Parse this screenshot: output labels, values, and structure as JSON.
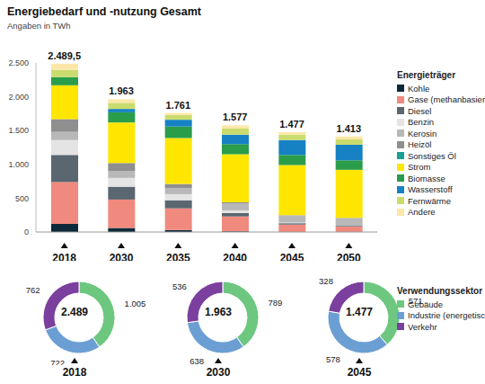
{
  "chart_data": [
    {
      "type": "bar",
      "title": "Energiebedarf und -nutzung Gesamt",
      "subtitle": "Angaben in TWh",
      "stacked": true,
      "grid": false,
      "legend_title": "Energieträger",
      "categories": [
        "2018",
        "2030",
        "2035",
        "2040",
        "2045",
        "2050"
      ],
      "series": [
        {
          "name": "Kohle",
          "color": "#0d2a3a",
          "values": [
            120,
            60,
            30,
            10,
            0,
            0
          ]
        },
        {
          "name": "Gase (methanbasiert)",
          "color": "#f08a7e",
          "values": [
            620,
            420,
            320,
            220,
            110,
            80
          ]
        },
        {
          "name": "Diesel",
          "color": "#5a6670",
          "values": [
            400,
            190,
            120,
            50,
            20,
            10
          ]
        },
        {
          "name": "Benzin",
          "color": "#e4e4e4",
          "values": [
            220,
            130,
            90,
            40,
            10,
            0
          ]
        },
        {
          "name": "Kerosin",
          "color": "#b8b8b8",
          "values": [
            120,
            100,
            90,
            100,
            110,
            120
          ]
        },
        {
          "name": "Heizöl",
          "color": "#8f8f8f",
          "values": [
            190,
            120,
            60,
            20,
            0,
            0
          ]
        },
        {
          "name": "Sonstiges Öl",
          "color": "#1a9e96",
          "values": [
            0,
            0,
            0,
            0,
            0,
            0
          ]
        },
        {
          "name": "Strom",
          "color": "#ffe600",
          "values": [
            500,
            600,
            680,
            710,
            740,
            710
          ]
        },
        {
          "name": "Biomasse",
          "color": "#2a9d4b",
          "values": [
            120,
            150,
            170,
            150,
            150,
            140
          ]
        },
        {
          "name": "Wasserstoff",
          "color": "#1682c4",
          "values": [
            0,
            50,
            100,
            140,
            220,
            230
          ]
        },
        {
          "name": "Fernwärme",
          "color": "#cadc6e",
          "values": [
            110,
            90,
            70,
            90,
            80,
            80
          ]
        },
        {
          "name": "Andere",
          "color": "#fde7a8",
          "values": [
            89.5,
            53,
            31,
            47,
            37,
            43
          ]
        }
      ],
      "totals": {
        "values": [
          2489.5,
          1963,
          1761,
          1577,
          1477,
          1413
        ],
        "value_labels": [
          "2.489,5",
          "1.963",
          "1.761",
          "1.577",
          "1.477",
          "1.413"
        ]
      },
      "ylim": [
        0,
        2500
      ],
      "yticks": [
        0,
        500,
        {
          "value": 1000,
          "label": "1.000"
        },
        {
          "value": 1500,
          "label": "1.500"
        },
        {
          "value": 2000,
          "label": "2.000"
        },
        {
          "value": 2500,
          "label": "2.500"
        }
      ]
    },
    {
      "type": "pie",
      "title": "2018",
      "legend_title": "Verwendungssektor",
      "categories": [
        "Gebäude",
        "Industrie (energetisch)",
        "Verkehr"
      ],
      "values": [
        1005,
        722,
        762
      ],
      "value_labels": [
        "1.005",
        "722",
        "762"
      ],
      "colors": [
        "#6dc77f",
        "#6b9fd4",
        "#7b3f9e"
      ],
      "center": {
        "value": 2489,
        "label": "2.489"
      }
    },
    {
      "type": "pie",
      "title": "2030",
      "categories": [
        "Gebäude",
        "Industrie (energetisch)",
        "Verkehr"
      ],
      "values": [
        789,
        638,
        536
      ],
      "value_labels": [
        "789",
        "638",
        "536"
      ],
      "colors": [
        "#6dc77f",
        "#6b9fd4",
        "#7b3f9e"
      ],
      "center": {
        "value": 1963,
        "label": "1.963"
      }
    },
    {
      "type": "pie",
      "title": "2045",
      "categories": [
        "Gebäude",
        "Industrie (energetisch)",
        "Verkehr"
      ],
      "values": [
        571,
        578,
        328
      ],
      "value_labels": [
        "571",
        "578",
        "328"
      ],
      "colors": [
        "#6dc77f",
        "#6b9fd4",
        "#7b3f9e"
      ],
      "center": {
        "value": 1477,
        "label": "1.477"
      }
    }
  ]
}
